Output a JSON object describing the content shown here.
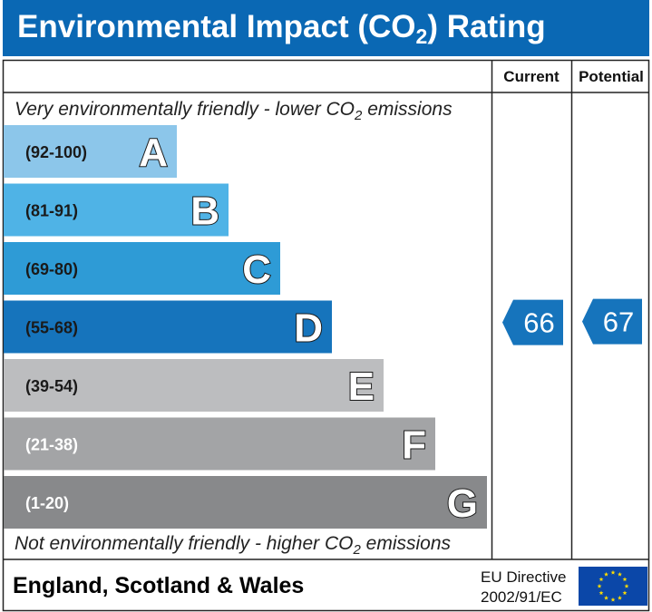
{
  "chart_data": {
    "type": "bar",
    "title": "Environmental Impact (CO2) Rating",
    "title_main": "Environmental Impact (CO",
    "title_sub": "2",
    "title_tail": ") Rating",
    "top_caption": "Very environmentally friendly - lower CO",
    "top_caption_sub": "2",
    "top_caption_tail": " emissions",
    "bottom_caption": "Not environmentally friendly - higher CO",
    "bottom_caption_sub": "2",
    "bottom_caption_tail": " emissions",
    "columns": [
      "Current",
      "Potential"
    ],
    "bands": [
      {
        "range": "(92-100)",
        "letter": "A",
        "min": 92,
        "max": 100,
        "color": "#8cc6ea",
        "range_color": "#1a1a1a"
      },
      {
        "range": "(81-91)",
        "letter": "B",
        "min": 81,
        "max": 91,
        "color": "#4fb3e6",
        "range_color": "#1a1a1a"
      },
      {
        "range": "(69-80)",
        "letter": "C",
        "min": 69,
        "max": 80,
        "color": "#2e9bd6",
        "range_color": "#1a1a1a"
      },
      {
        "range": "(55-68)",
        "letter": "D",
        "min": 55,
        "max": 68,
        "color": "#1674bc",
        "range_color": "#1a1a1a"
      },
      {
        "range": "(39-54)",
        "letter": "E",
        "min": 39,
        "max": 54,
        "color": "#bcbdbf",
        "range_color": "#1a1a1a"
      },
      {
        "range": "(21-38)",
        "letter": "F",
        "min": 21,
        "max": 38,
        "color": "#a3a4a6",
        "range_color": "#ffffff"
      },
      {
        "range": "(1-20)",
        "letter": "G",
        "min": 1,
        "max": 20,
        "color": "#88898b",
        "range_color": "#ffffff"
      }
    ],
    "current": {
      "label": "Current",
      "value": 66,
      "band": "D",
      "color": "#1674bc"
    },
    "potential": {
      "label": "Potential",
      "value": 67,
      "band": "D",
      "color": "#1674bc"
    }
  },
  "footer": {
    "region": "England, Scotland & Wales",
    "directive_line1": "EU Directive",
    "directive_line2": "2002/91/EC"
  },
  "colors": {
    "title_bar": "#0a68b4",
    "eu_flag": "#0b47a8",
    "eu_stars": "#ffdd00"
  },
  "icons": {
    "eu_flag": "eu-flag-icon"
  }
}
